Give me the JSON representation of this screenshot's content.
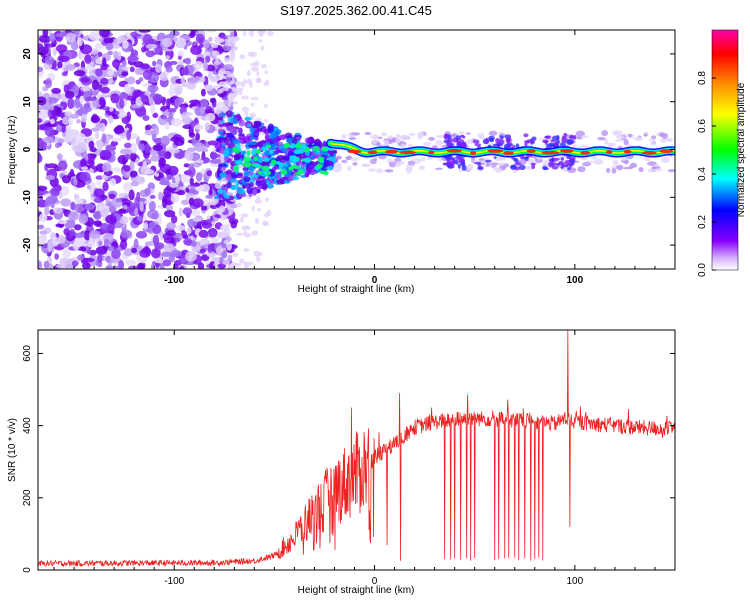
{
  "title": "S197.2025.362.00.41.C45",
  "chart_data": [
    {
      "type": "heatmap",
      "name": "spectrogram",
      "xlabel": "Height of straight line (km)",
      "ylabel": "Frequency (Hz)",
      "xlim": [
        -168,
        150
      ],
      "ylim": [
        -25,
        25
      ],
      "xticks": [
        -100,
        0,
        100
      ],
      "xtick_labels": [
        "-100",
        "0",
        "100"
      ],
      "yticks": [
        -20,
        -10,
        0,
        10,
        20
      ],
      "ytick_labels": [
        "-20",
        "-10",
        "0",
        "10",
        "20"
      ],
      "colorbar": {
        "label": "Normalized spectral amplitude",
        "range": [
          0,
          1
        ],
        "ticks": [
          0.0,
          0.2,
          0.4,
          0.6,
          0.8
        ],
        "tick_labels": [
          "0.0",
          "0.2",
          "0.4",
          "0.6",
          "0.8"
        ],
        "colors": [
          "#ffffff",
          "#8800ff",
          "#0000ff",
          "#00ffff",
          "#00ff00",
          "#ffff00",
          "#ff8800",
          "#ff0000",
          "#ff00aa"
        ]
      },
      "features": {
        "noise_region_x": [
          -168,
          -78
        ],
        "transition_region_x": [
          -78,
          -20
        ],
        "tone_region_x": [
          -20,
          150
        ],
        "tone_frequency_hz": -0.5
      }
    },
    {
      "type": "line",
      "name": "snr",
      "xlabel": "Height of straight line (km)",
      "ylabel": "SNR (10 * v/v)",
      "xlim": [
        -168,
        150
      ],
      "ylim": [
        0,
        665
      ],
      "xticks": [
        -100,
        0,
        100
      ],
      "xtick_labels": [
        "-100",
        "0",
        "100"
      ],
      "yticks": [
        0,
        200,
        400,
        600
      ],
      "ytick_labels": [
        "0",
        "200",
        "400",
        "600"
      ],
      "color": "#ee2222",
      "profile_x": [
        -168,
        -80,
        -60,
        -50,
        -40,
        -30,
        -20,
        -10,
        0,
        10,
        20,
        30,
        40,
        50,
        60,
        70,
        80,
        90,
        95,
        100,
        110,
        120,
        130,
        150
      ],
      "profile_y": [
        18,
        20,
        25,
        40,
        90,
        160,
        220,
        260,
        310,
        350,
        395,
        410,
        418,
        420,
        418,
        415,
        412,
        405,
        420,
        410,
        405,
        400,
        395,
        390
      ],
      "dropouts_x": [
        13,
        35,
        38,
        40,
        43,
        46,
        48,
        50,
        60,
        62,
        65,
        67,
        70,
        72,
        75,
        78,
        80,
        82,
        84
      ],
      "spikes": [
        {
          "x": -11.5,
          "y": 450
        },
        {
          "x": 12.5,
          "y": 490
        },
        {
          "x": 96.5,
          "y": 665
        },
        {
          "x": 97.5,
          "y": 120
        }
      ]
    }
  ]
}
